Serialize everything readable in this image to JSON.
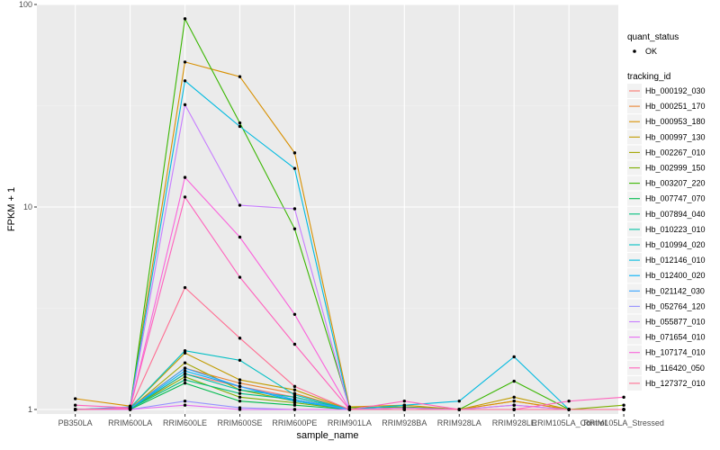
{
  "chart_data": {
    "type": "line",
    "xlabel": "sample_name",
    "ylabel": "FPKM + 1",
    "y_scale": "log10",
    "ylim": [
      0.95,
      100
    ],
    "y_ticks": [
      1,
      10,
      100
    ],
    "y_tick_labels": [
      "1",
      "10",
      "100"
    ],
    "grid": true,
    "legend_position": "right",
    "categories": [
      "PB350LA",
      "RRIM600LA",
      "RRIM600LE",
      "RRIM600SE",
      "RRIM600PE",
      "RRIM901LA",
      "RRIM928BA",
      "RRIM928LA",
      "RRIM928LE",
      "RRIM105LA_Control",
      "RRIM105LA_Stressed"
    ],
    "category_labels": [
      "PB350LA",
      "RRIM600LA",
      "RRIM600LE",
      "RRIM600SE",
      "RRIM600PE",
      "RRIM901LA",
      "RRIM928BA",
      "RRIM928LA",
      "RRIM928LE",
      "RRIM105LA_Control",
      "RRIM105LA_Stressed"
    ],
    "shape_legend": {
      "title": "quant_status",
      "items": [
        "OK"
      ]
    },
    "color_legend_title": "tracking_id",
    "series": [
      {
        "name": "Hb_000192_030",
        "color": "#F8766D",
        "values": [
          1.0,
          1.0,
          1.5,
          1.3,
          1.15,
          1.0,
          1.0,
          1.0,
          1.05,
          1.0,
          1.0
        ]
      },
      {
        "name": "Hb_000251_170",
        "color": "#EA8331",
        "values": [
          1.0,
          1.02,
          1.6,
          1.35,
          1.2,
          1.0,
          1.02,
          1.0,
          1.1,
          1.0,
          1.0
        ]
      },
      {
        "name": "Hb_000953_180",
        "color": "#D89000",
        "values": [
          1.13,
          1.04,
          52,
          44,
          18.5,
          1.03,
          1.05,
          1.0,
          1.1,
          1.0,
          1.0
        ]
      },
      {
        "name": "Hb_000997_130",
        "color": "#C09B00",
        "values": [
          1.0,
          1.02,
          1.9,
          1.4,
          1.25,
          1.0,
          1.02,
          1.0,
          1.15,
          1.0,
          1.0
        ]
      },
      {
        "name": "Hb_002267_010",
        "color": "#A3A500",
        "values": [
          1.0,
          1.01,
          1.7,
          1.25,
          1.1,
          1.0,
          1.0,
          1.0,
          1.0,
          1.0,
          1.0
        ]
      },
      {
        "name": "Hb_002999_150",
        "color": "#7CAE00",
        "values": [
          1.0,
          1.01,
          1.45,
          1.15,
          1.08,
          1.0,
          1.0,
          1.0,
          1.0,
          1.0,
          1.05
        ]
      },
      {
        "name": "Hb_003207_220",
        "color": "#39B600",
        "values": [
          1.0,
          1.02,
          85,
          26,
          7.8,
          1.02,
          1.03,
          1.0,
          1.38,
          1.0,
          1.0
        ]
      },
      {
        "name": "Hb_007747_070",
        "color": "#00BB4E",
        "values": [
          1.0,
          1.0,
          1.35,
          1.1,
          1.05,
          1.0,
          1.0,
          1.0,
          1.0,
          1.0,
          1.0
        ]
      },
      {
        "name": "Hb_007894_040",
        "color": "#00BF7D",
        "values": [
          1.0,
          1.01,
          1.4,
          1.2,
          1.12,
          1.0,
          1.0,
          1.0,
          1.0,
          1.0,
          1.0
        ]
      },
      {
        "name": "Hb_010223_010",
        "color": "#00C1A3",
        "values": [
          1.0,
          1.01,
          1.5,
          1.25,
          1.15,
          1.0,
          1.0,
          1.0,
          1.0,
          1.0,
          1.0
        ]
      },
      {
        "name": "Hb_010994_020",
        "color": "#00BFC4",
        "values": [
          1.0,
          1.02,
          1.95,
          1.75,
          1.18,
          1.0,
          1.0,
          1.0,
          1.0,
          1.0,
          1.0
        ]
      },
      {
        "name": "Hb_012146_010",
        "color": "#00BAE0",
        "values": [
          1.0,
          1.03,
          42,
          25,
          15.5,
          1.0,
          1.05,
          1.1,
          1.82,
          1.0,
          1.0
        ]
      },
      {
        "name": "Hb_012400_020",
        "color": "#00B0F6",
        "values": [
          1.0,
          1.01,
          1.55,
          1.3,
          1.1,
          1.0,
          1.0,
          1.0,
          1.0,
          1.0,
          1.0
        ]
      },
      {
        "name": "Hb_021142_030",
        "color": "#35A2FF",
        "values": [
          1.0,
          1.01,
          1.6,
          1.3,
          1.12,
          1.0,
          1.0,
          1.0,
          1.0,
          1.0,
          1.0
        ]
      },
      {
        "name": "Hb_052764_120",
        "color": "#9590FF",
        "values": [
          1.0,
          1.0,
          1.1,
          1.02,
          1.0,
          1.0,
          1.0,
          1.0,
          1.0,
          1.0,
          1.0
        ]
      },
      {
        "name": "Hb_055877_010",
        "color": "#C77CFF",
        "values": [
          1.0,
          1.02,
          32,
          10.2,
          9.8,
          1.0,
          1.02,
          1.0,
          1.05,
          1.0,
          1.0
        ]
      },
      {
        "name": "Hb_071654_010",
        "color": "#E76BF3",
        "values": [
          1.0,
          1.0,
          1.05,
          1.0,
          1.0,
          1.0,
          1.0,
          1.0,
          1.0,
          1.0,
          1.0
        ]
      },
      {
        "name": "Hb_107174_010",
        "color": "#FA62DB",
        "values": [
          1.0,
          1.01,
          14,
          7.1,
          2.95,
          1.0,
          1.0,
          1.0,
          1.0,
          1.0,
          1.0
        ]
      },
      {
        "name": "Hb_116420_050",
        "color": "#FF62BC",
        "values": [
          1.05,
          1.02,
          11.2,
          4.5,
          2.1,
          1.0,
          1.1,
          1.0,
          1.0,
          1.1,
          1.15
        ]
      },
      {
        "name": "Hb_127372_010",
        "color": "#FF6C91",
        "values": [
          1.0,
          1.01,
          4.0,
          2.25,
          1.3,
          1.0,
          1.0,
          1.0,
          1.0,
          1.0,
          1.0
        ]
      }
    ]
  }
}
